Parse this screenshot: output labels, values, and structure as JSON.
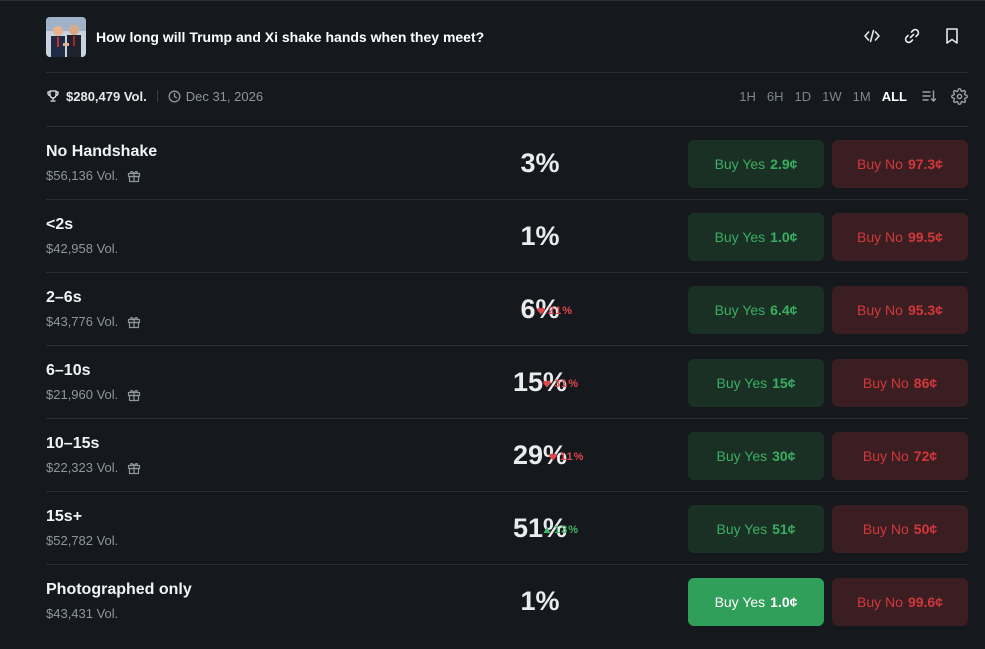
{
  "market": {
    "title": "How long will Trump and Xi shake hands when they meet?",
    "volume": "$280,479 Vol.",
    "end_date": "Dec 31, 2026"
  },
  "time_ranges": [
    {
      "label": "1H",
      "active": false
    },
    {
      "label": "6H",
      "active": false
    },
    {
      "label": "1D",
      "active": false
    },
    {
      "label": "1W",
      "active": false
    },
    {
      "label": "1M",
      "active": false
    },
    {
      "label": "ALL",
      "active": true
    }
  ],
  "icons": {
    "embed": "code-icon",
    "link": "link-icon",
    "bookmark": "bookmark-icon",
    "trophy": "trophy-icon",
    "clock": "clock-icon",
    "sort": "sort-icon",
    "settings": "gear-icon",
    "gift": "gift-icon"
  },
  "colors": {
    "yes": "#3aae61",
    "no": "#d2383b",
    "up": "#3fb868",
    "down": "#e0484a"
  },
  "outcomes": [
    {
      "name": "No Handshake",
      "volume": "$56,136 Vol.",
      "gift": true,
      "percent": "3%",
      "change": "",
      "direction": "",
      "yes_label": "Buy Yes",
      "yes_price": "2.9¢",
      "no_label": "Buy No",
      "no_price": "97.3¢"
    },
    {
      "name": "<2s",
      "volume": "$42,958 Vol.",
      "gift": false,
      "percent": "1%",
      "change": "",
      "direction": "",
      "yes_label": "Buy Yes",
      "yes_price": "1.0¢",
      "no_label": "Buy No",
      "no_price": "99.5¢"
    },
    {
      "name": "2–6s",
      "volume": "$43,776 Vol.",
      "gift": true,
      "percent": "6%",
      "change": "21%",
      "direction": "down",
      "yes_label": "Buy Yes",
      "yes_price": "6.4¢",
      "no_label": "Buy No",
      "no_price": "95.3¢"
    },
    {
      "name": "6–10s",
      "volume": "$21,960 Vol.",
      "gift": true,
      "percent": "15%",
      "change": "31%",
      "direction": "down",
      "yes_label": "Buy Yes",
      "yes_price": "15¢",
      "no_label": "Buy No",
      "no_price": "86¢"
    },
    {
      "name": "10–15s",
      "volume": "$22,323 Vol.",
      "gift": true,
      "percent": "29%",
      "change": "11%",
      "direction": "down",
      "yes_label": "Buy Yes",
      "yes_price": "30¢",
      "no_label": "Buy No",
      "no_price": "72¢"
    },
    {
      "name": "15s+",
      "volume": "$52,782 Vol.",
      "gift": false,
      "percent": "51%",
      "change": "13%",
      "direction": "up",
      "yes_label": "Buy Yes",
      "yes_price": "51¢",
      "no_label": "Buy No",
      "no_price": "50¢"
    },
    {
      "name": "Photographed only",
      "volume": "$43,431 Vol.",
      "gift": false,
      "percent": "1%",
      "change": "",
      "direction": "",
      "yes_label": "Buy Yes",
      "yes_price": "1.0¢",
      "no_label": "Buy No",
      "no_price": "99.6¢",
      "highlight": true
    }
  ]
}
